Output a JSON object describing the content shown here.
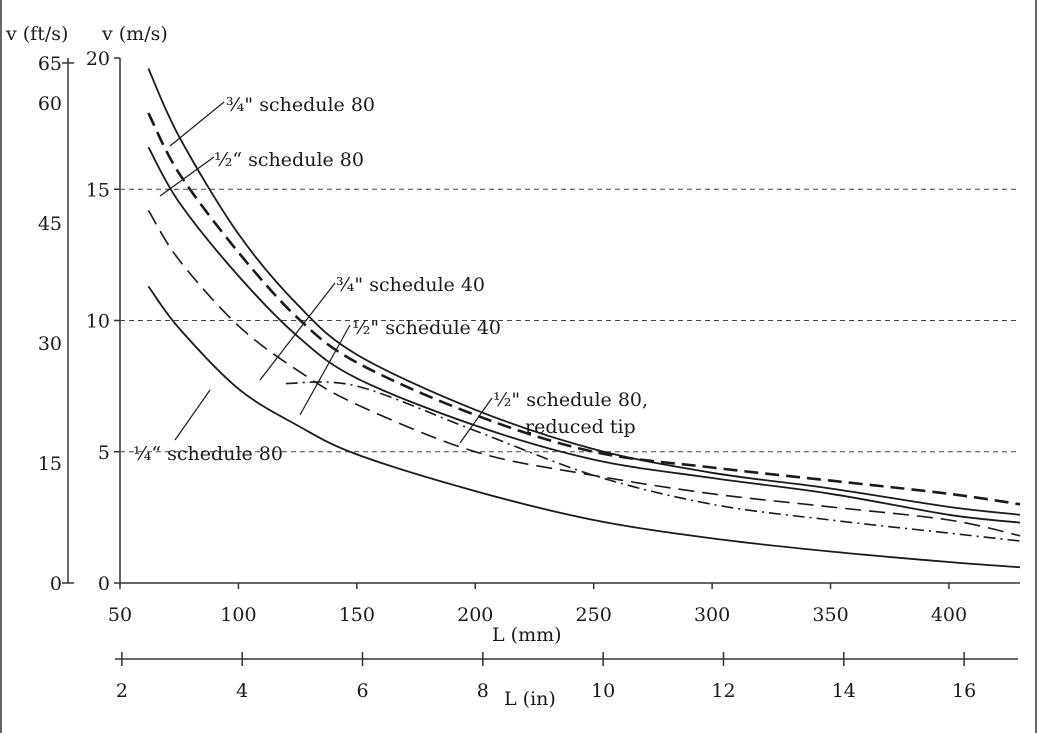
{
  "chart_data": {
    "type": "line",
    "yaxis_ms": {
      "label": "v (m/s)",
      "ticks": [
        0,
        5,
        10,
        15,
        20
      ],
      "range": [
        0,
        20
      ]
    },
    "yaxis_fts": {
      "label": "v (ft/s)",
      "ticks": [
        0,
        15,
        30,
        45,
        60,
        65
      ]
    },
    "xaxis_mm": {
      "label": "L (mm)",
      "ticks": [
        50,
        100,
        150,
        200,
        250,
        300,
        350,
        400
      ],
      "range": [
        50,
        430
      ]
    },
    "xaxis_in": {
      "label": "L (in)",
      "ticks": [
        2,
        4,
        6,
        8,
        10,
        12,
        14,
        16
      ]
    },
    "gridlines_ms": [
      5,
      10,
      15
    ],
    "series": [
      {
        "name": "¾\" schedule 80",
        "style": "solid",
        "points": [
          [
            62,
            19.6
          ],
          [
            75,
            17.0
          ],
          [
            100,
            13.3
          ],
          [
            125,
            10.6
          ],
          [
            150,
            8.7
          ],
          [
            200,
            6.6
          ],
          [
            250,
            5.1
          ],
          [
            300,
            4.2
          ],
          [
            350,
            3.6
          ],
          [
            400,
            2.9
          ],
          [
            430,
            2.6
          ]
        ]
      },
      {
        "name": "½“ schedule 80",
        "style": "solid",
        "points": [
          [
            62,
            16.6
          ],
          [
            75,
            14.5
          ],
          [
            100,
            11.7
          ],
          [
            125,
            9.4
          ],
          [
            150,
            7.8
          ],
          [
            200,
            6.0
          ],
          [
            250,
            4.7
          ],
          [
            300,
            4.0
          ],
          [
            350,
            3.4
          ],
          [
            400,
            2.6
          ],
          [
            430,
            2.3
          ]
        ]
      },
      {
        "name": "½\" schedule 80, reduced tip",
        "style": "dash-heavy",
        "points": [
          [
            62,
            17.9
          ],
          [
            75,
            15.6
          ],
          [
            100,
            12.6
          ],
          [
            125,
            10.1
          ],
          [
            150,
            8.4
          ],
          [
            200,
            6.4
          ],
          [
            250,
            5.0
          ],
          [
            300,
            4.4
          ],
          [
            350,
            3.9
          ],
          [
            400,
            3.4
          ],
          [
            430,
            3.0
          ]
        ]
      },
      {
        "name": "¾\" schedule 40",
        "style": "dash",
        "points": [
          [
            62,
            14.2
          ],
          [
            75,
            12.3
          ],
          [
            100,
            9.8
          ],
          [
            125,
            8.1
          ],
          [
            150,
            6.8
          ],
          [
            200,
            5.0
          ],
          [
            250,
            4.1
          ],
          [
            300,
            3.4
          ],
          [
            350,
            2.9
          ],
          [
            400,
            2.4
          ],
          [
            430,
            1.8
          ]
        ]
      },
      {
        "name": "½\" schedule 40",
        "style": "dashdot",
        "points": [
          [
            120,
            7.6
          ],
          [
            150,
            7.5
          ],
          [
            200,
            5.8
          ],
          [
            250,
            4.1
          ],
          [
            300,
            3.0
          ],
          [
            350,
            2.4
          ],
          [
            400,
            1.9
          ],
          [
            430,
            1.6
          ]
        ]
      },
      {
        "name": "¼“ schedule 80",
        "style": "solid",
        "points": [
          [
            62,
            11.3
          ],
          [
            75,
            9.7
          ],
          [
            100,
            7.4
          ],
          [
            125,
            6.0
          ],
          [
            150,
            4.9
          ],
          [
            200,
            3.5
          ],
          [
            250,
            2.4
          ],
          [
            300,
            1.7
          ],
          [
            350,
            1.2
          ],
          [
            400,
            0.8
          ],
          [
            430,
            0.6
          ]
        ]
      }
    ]
  },
  "labels": {
    "s34_80": "¾\" schedule 80",
    "s12_80": "½“ schedule 80",
    "s34_40": "¾\" schedule 40",
    "s12_40": "½\" schedule 40",
    "s12_80r_a": "½\" schedule 80,",
    "s12_80r_b": "reduced tip",
    "s14_80": "¼“ schedule 80"
  }
}
